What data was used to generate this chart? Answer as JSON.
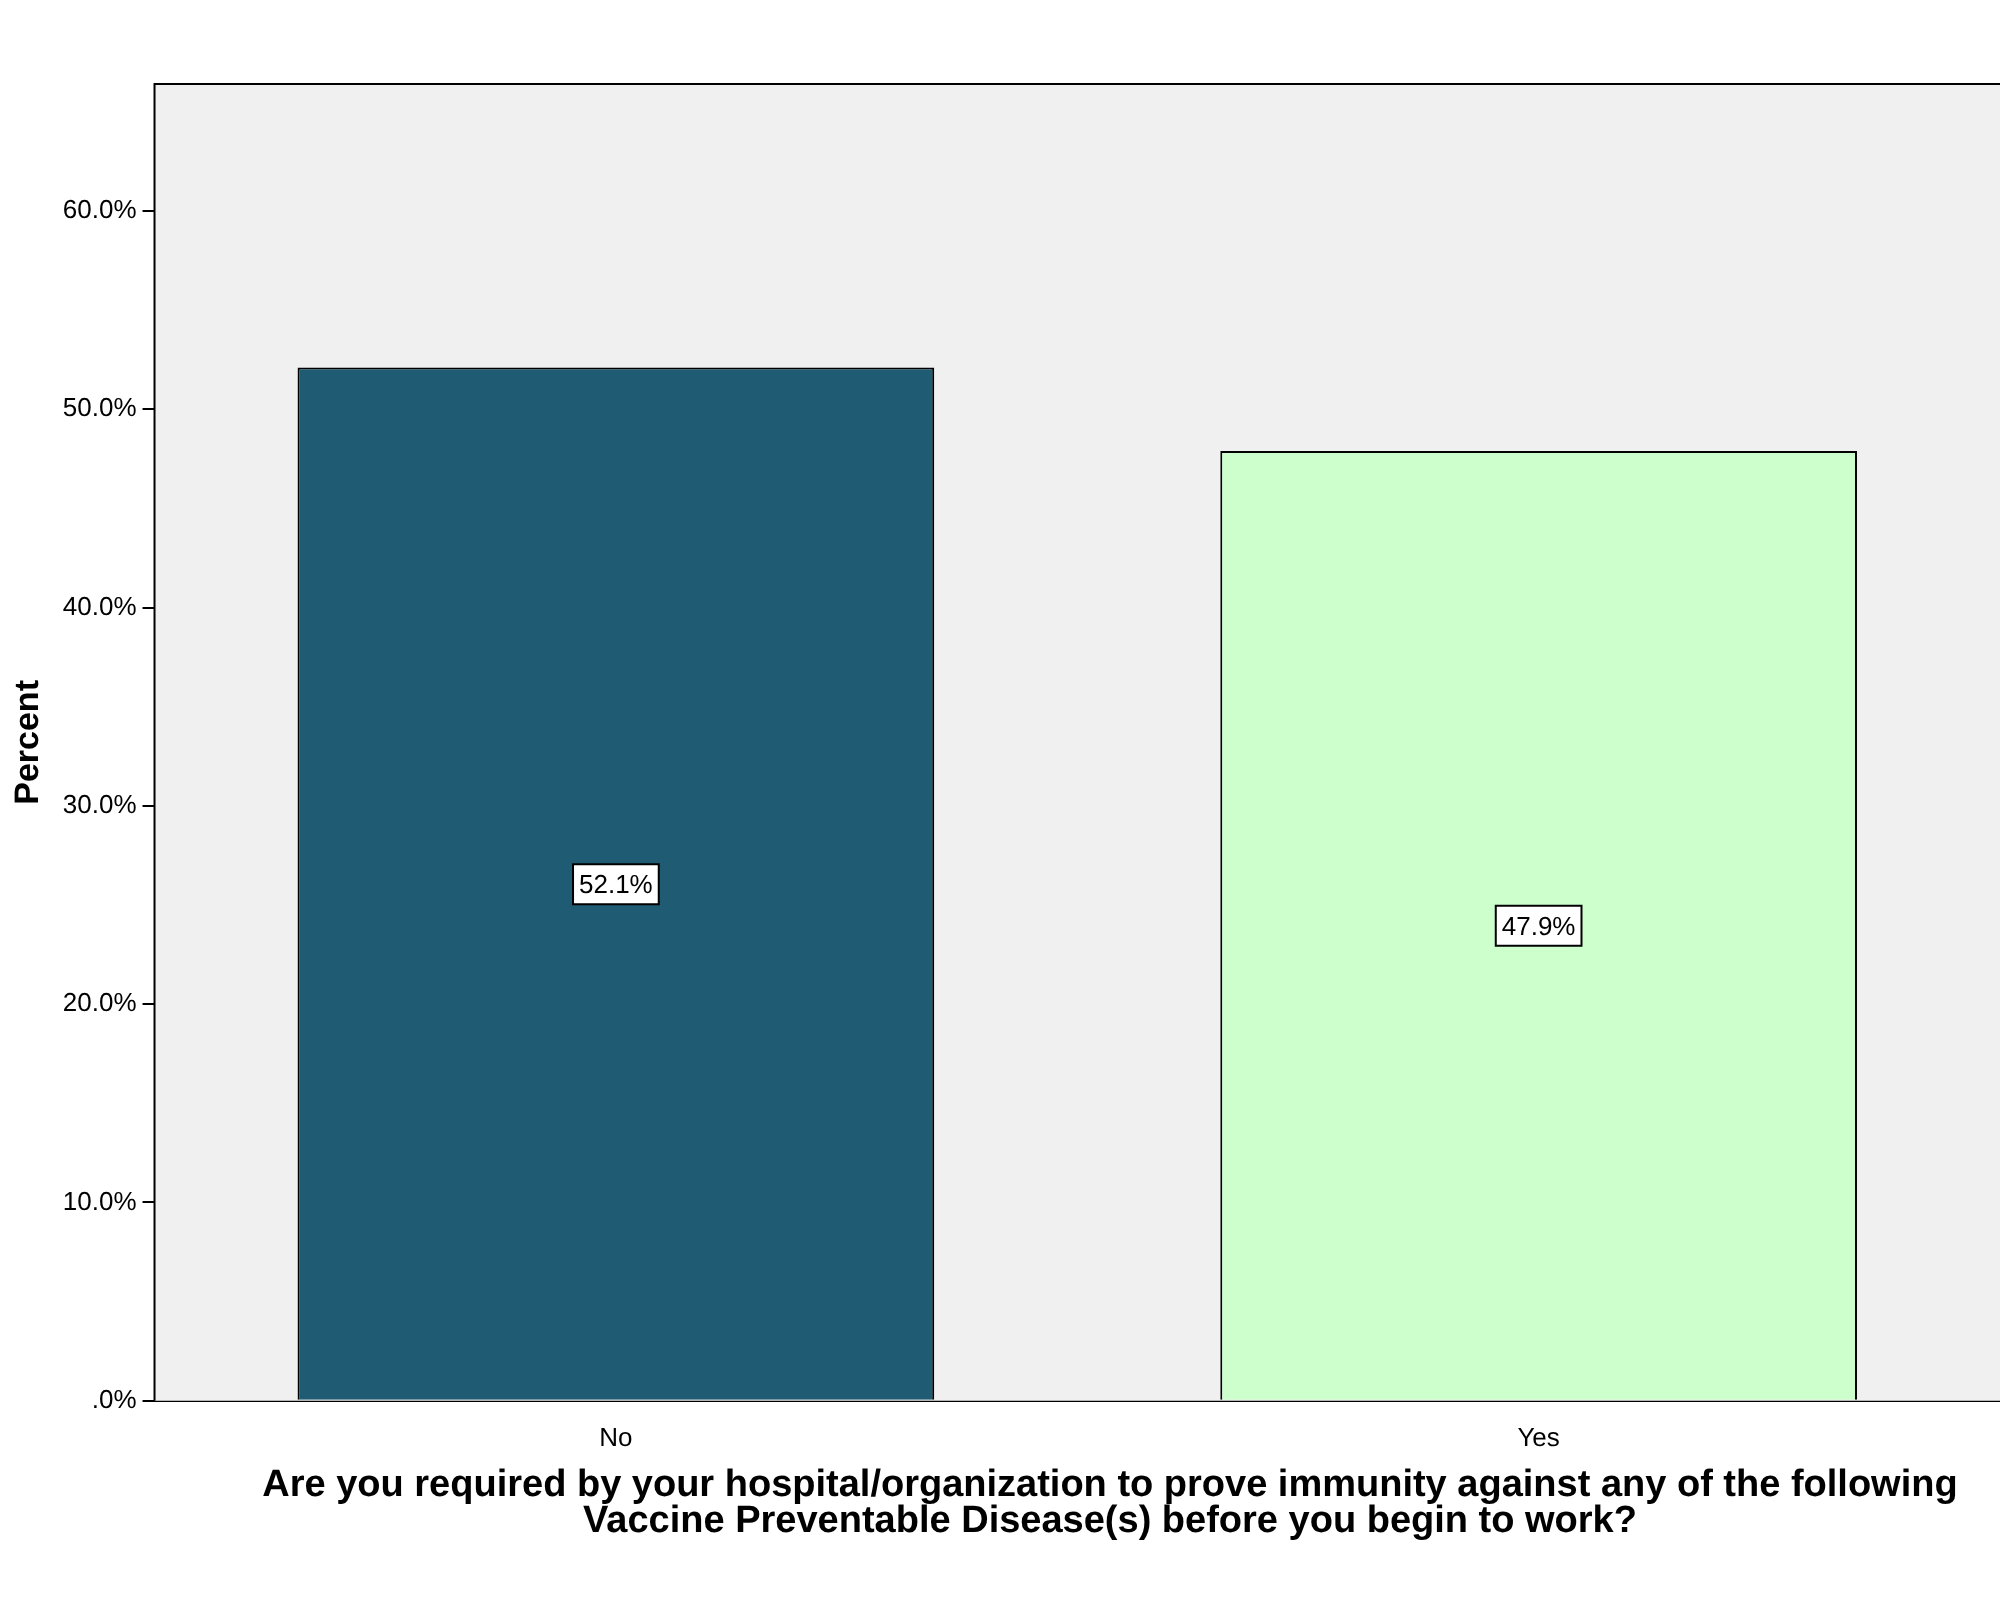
{
  "chart_data": {
    "type": "bar",
    "ylabel": "Percent",
    "xlabel": "Are you required by your hospital/organization to prove immunity against any of the following Vaccine Preventable Disease(s) before you begin to work?",
    "categories": [
      "No",
      "Yes"
    ],
    "values": [
      52.1,
      47.9
    ],
    "colors": [
      "#1f5c73",
      "#ccffcc"
    ],
    "value_labels": [
      "52.1%",
      "47.9%"
    ],
    "ylim": [
      0,
      66.4
    ],
    "yticks": [
      {
        "value": 0,
        "label": ".0%"
      },
      {
        "value": 10,
        "label": "10.0%"
      },
      {
        "value": 20,
        "label": "20.0%"
      },
      {
        "value": 30,
        "label": "30.0%"
      },
      {
        "value": 40,
        "label": "40.0%"
      },
      {
        "value": 50,
        "label": "50.0%"
      },
      {
        "value": 60,
        "label": "60.0%"
      }
    ]
  }
}
